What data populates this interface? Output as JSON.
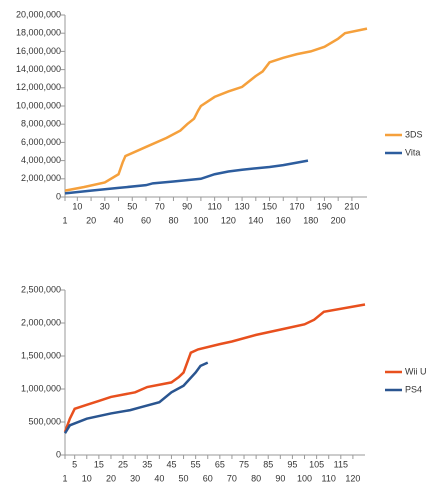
{
  "chart_data": [
    {
      "type": "line",
      "xlim": [
        1,
        221
      ],
      "xticks": [
        1,
        10,
        20,
        30,
        40,
        50,
        60,
        70,
        80,
        90,
        100,
        110,
        120,
        130,
        140,
        150,
        160,
        170,
        180,
        190,
        200,
        210
      ],
      "ylim": [
        0,
        20000000
      ],
      "yticks": [
        0,
        {
          "value": 2000000,
          "label": "2,000,000"
        },
        {
          "value": 4000000,
          "label": "4,000,000"
        },
        {
          "value": 6000000,
          "label": "6,000,000"
        },
        {
          "value": 8000000,
          "label": "8,000,000"
        },
        {
          "value": 10000000,
          "label": "10,000,000"
        },
        {
          "value": 12000000,
          "label": "12,000,000"
        },
        {
          "value": 14000000,
          "label": "14,000,000"
        },
        {
          "value": 16000000,
          "label": "16,000,000"
        },
        {
          "value": 18000000,
          "label": "18,000,000"
        },
        {
          "value": 20000000,
          "label": "20,000,000"
        }
      ],
      "series": [
        {
          "name": "3DS",
          "color": "#f5a03c",
          "x": [
            1,
            15,
            30,
            40,
            43,
            45,
            60,
            75,
            85,
            90,
            95,
            98,
            100,
            110,
            120,
            130,
            140,
            145,
            150,
            160,
            170,
            180,
            190,
            200,
            205,
            221
          ],
          "values": [
            700000,
            1100000,
            1600000,
            2500000,
            3800000,
            4500000,
            5500000,
            6500000,
            7300000,
            8000000,
            8600000,
            9500000,
            10000000,
            11000000,
            11600000,
            12100000,
            13300000,
            13800000,
            14800000,
            15300000,
            15700000,
            16000000,
            16500000,
            17400000,
            18000000,
            18500000
          ]
        },
        {
          "name": "Vita",
          "color": "#2d5d9e",
          "x": [
            1,
            20,
            40,
            60,
            65,
            80,
            100,
            110,
            120,
            130,
            150,
            160,
            178
          ],
          "values": [
            400000,
            700000,
            1000000,
            1300000,
            1500000,
            1700000,
            2000000,
            2500000,
            2800000,
            3000000,
            3300000,
            3500000,
            4000000
          ]
        }
      ]
    },
    {
      "type": "line",
      "xlim": [
        1,
        125
      ],
      "xticks": [
        1,
        5,
        10,
        15,
        20,
        25,
        30,
        35,
        40,
        45,
        50,
        55,
        60,
        65,
        70,
        75,
        80,
        85,
        90,
        95,
        100,
        105,
        110,
        115,
        120
      ],
      "ylim": [
        0,
        2500000
      ],
      "yticks": [
        0,
        {
          "value": 500000,
          "label": "500,000"
        },
        {
          "value": 1000000,
          "label": "1,000,000"
        },
        {
          "value": 1500000,
          "label": "1,500,000"
        },
        {
          "value": 2000000,
          "label": "2,000,000"
        },
        {
          "value": 2500000,
          "label": "2,500,000"
        }
      ],
      "series": [
        {
          "name": "Wii U",
          "color": "#e8501e",
          "x": [
            1,
            3,
            5,
            10,
            15,
            20,
            30,
            35,
            45,
            48,
            50,
            53,
            56,
            65,
            70,
            80,
            90,
            100,
            104,
            108,
            125
          ],
          "values": [
            350000,
            550000,
            700000,
            760000,
            820000,
            880000,
            950000,
            1030000,
            1100000,
            1180000,
            1250000,
            1550000,
            1600000,
            1680000,
            1720000,
            1820000,
            1900000,
            1980000,
            2050000,
            2170000,
            2280000
          ]
        },
        {
          "name": "PS4",
          "color": "#2a5590",
          "x": [
            1,
            3,
            10,
            20,
            28,
            32,
            40,
            45,
            50,
            55,
            57,
            60
          ],
          "values": [
            330000,
            450000,
            550000,
            630000,
            680000,
            720000,
            800000,
            950000,
            1050000,
            1250000,
            1350000,
            1400000
          ]
        }
      ]
    }
  ]
}
